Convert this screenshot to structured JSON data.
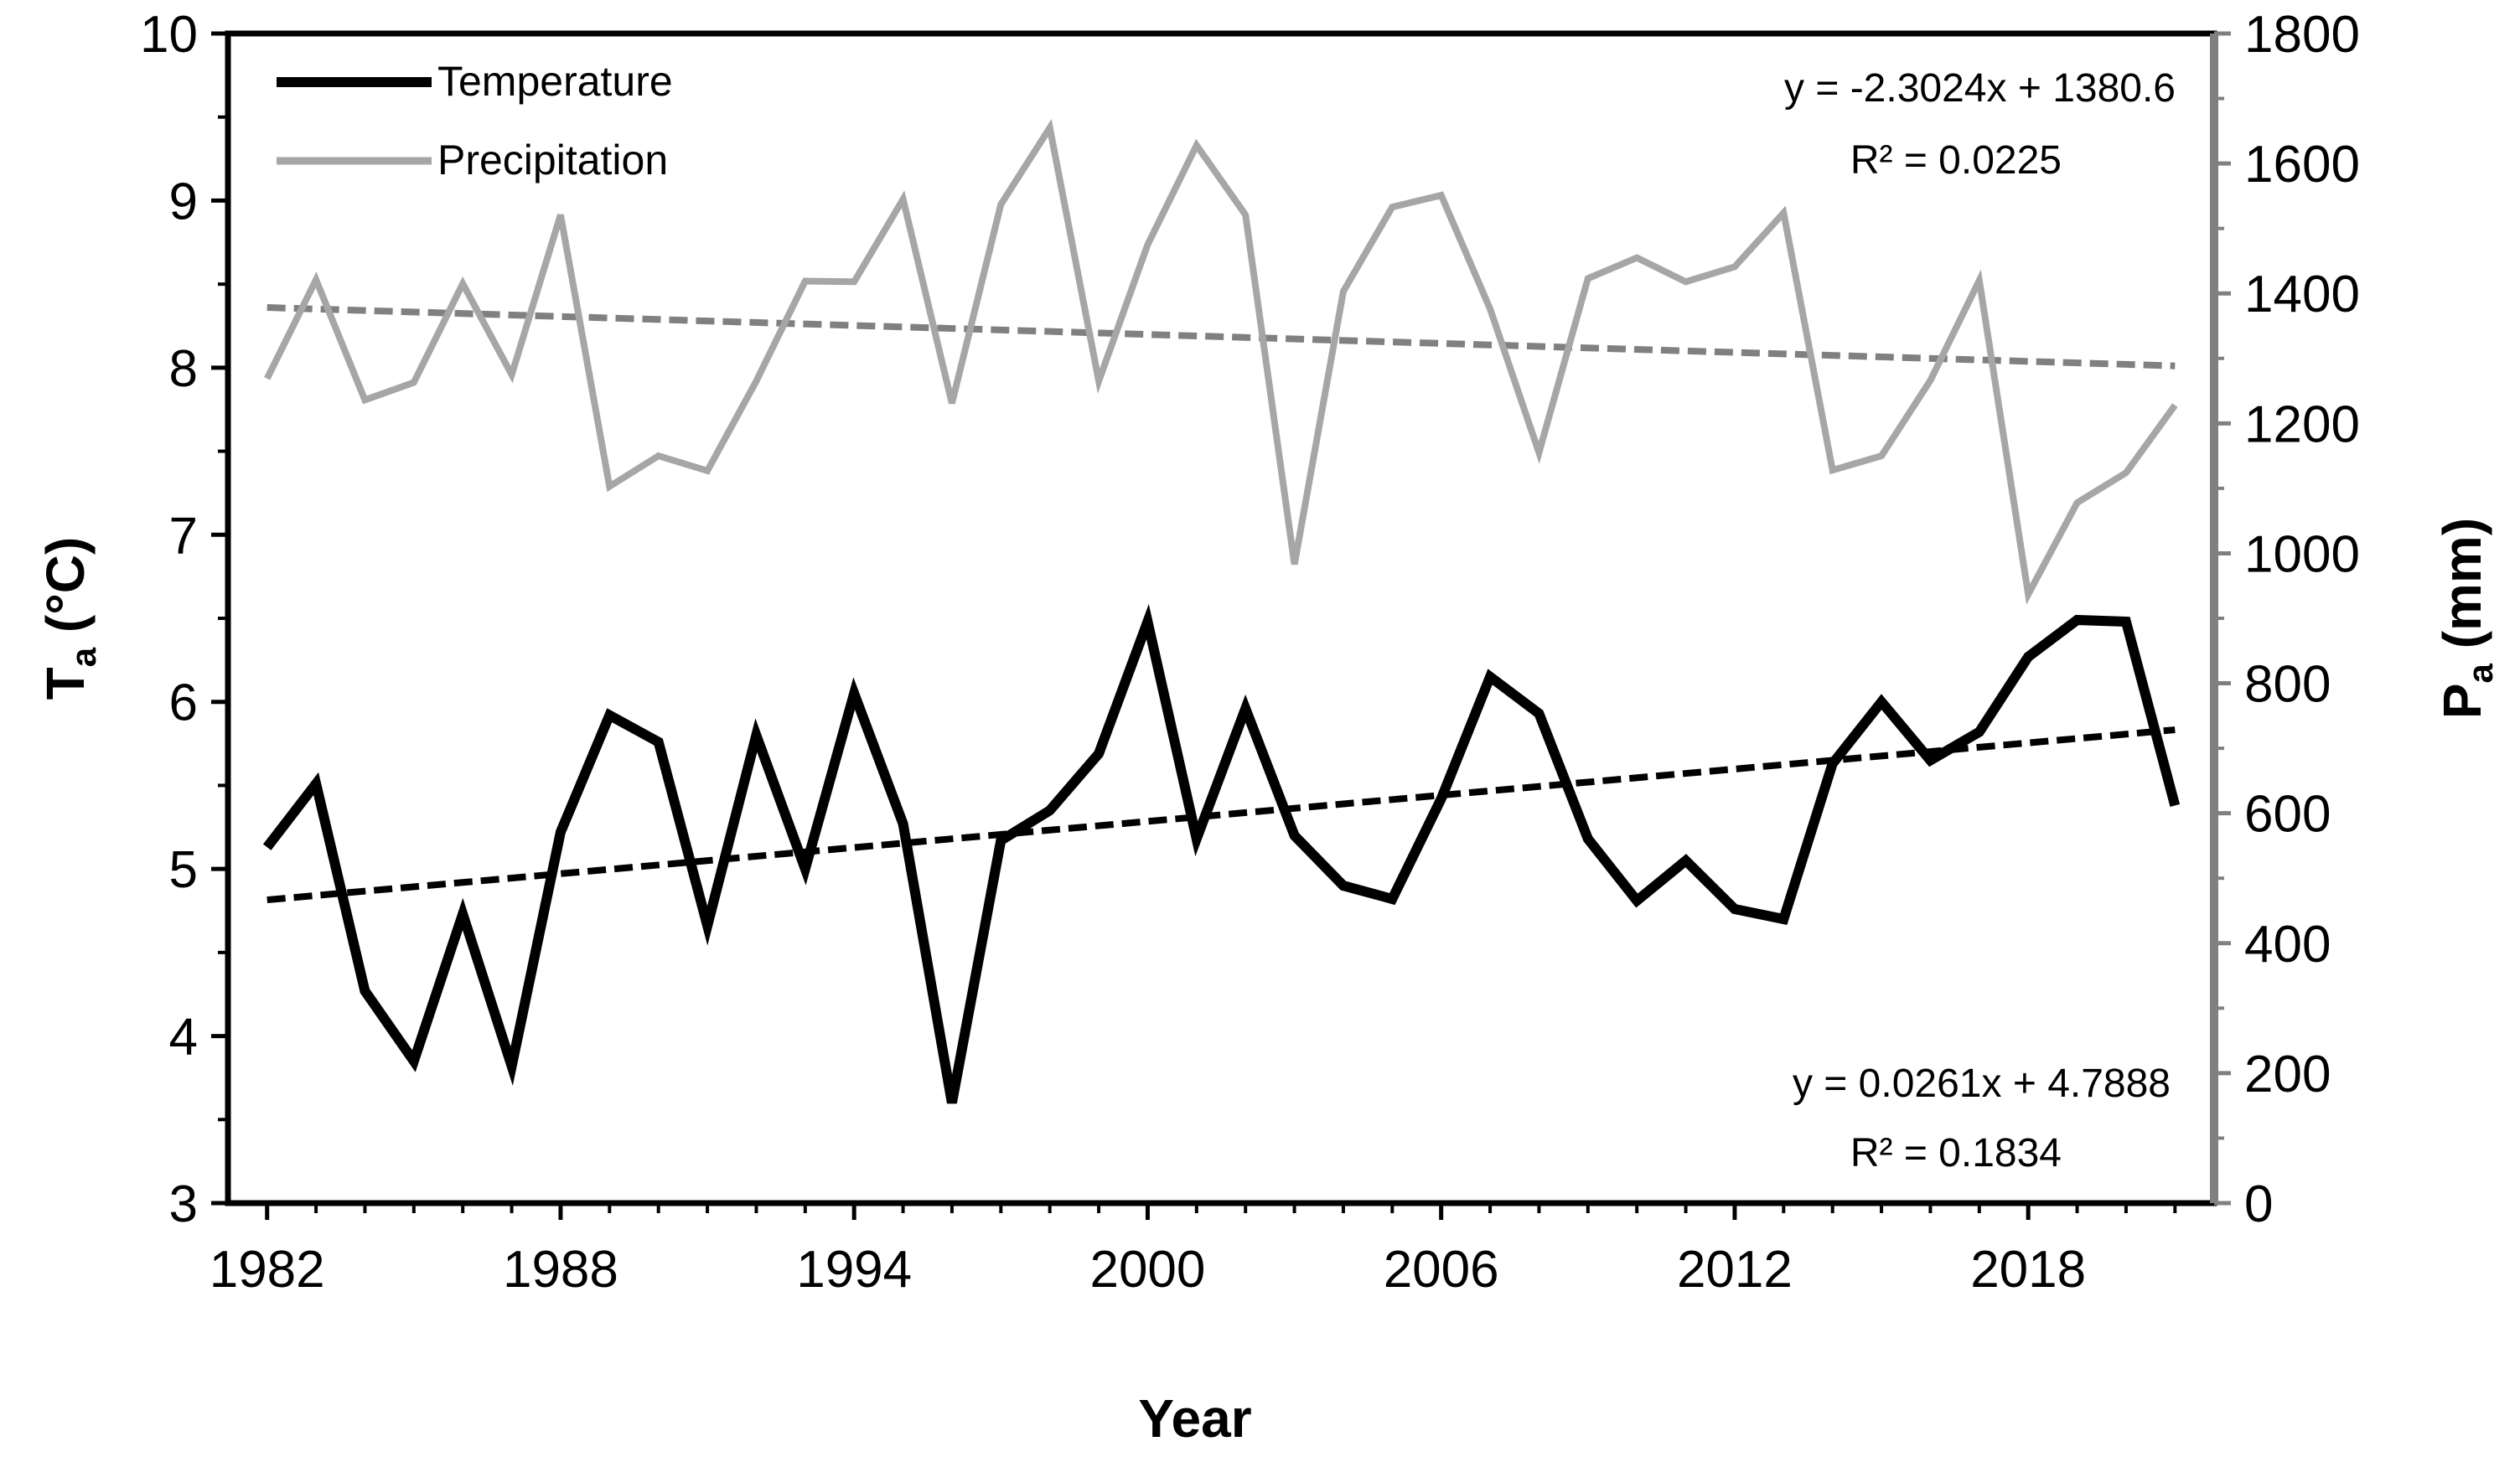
{
  "chart_data": {
    "type": "line",
    "xlabel": "Year",
    "ylabel_left_main": "T",
    "ylabel_left_sub": "a",
    "ylabel_left_unit": " (°C)",
    "ylabel_right_main": "P",
    "ylabel_right_sub": "a",
    "ylabel_right_unit": " (mm)",
    "xlim": [
      1981.2,
      2021.8
    ],
    "xticks": [
      1982,
      1988,
      1994,
      2000,
      2006,
      2012,
      2018
    ],
    "xtick_labels": [
      "1982",
      "1988",
      "1994",
      "2000",
      "2006",
      "2012",
      "2018"
    ],
    "ylim_left": [
      3,
      10
    ],
    "yticks_left": [
      3,
      4,
      5,
      6,
      7,
      8,
      9,
      10
    ],
    "ytick_labels_left": [
      "3",
      "4",
      "5",
      "6",
      "7",
      "8",
      "9",
      "10"
    ],
    "ylim_right": [
      0,
      1800
    ],
    "yticks_right": [
      0,
      200,
      400,
      600,
      800,
      1000,
      1200,
      1400,
      1600,
      1800
    ],
    "ytick_labels_right": [
      "0",
      "200",
      "400",
      "600",
      "800",
      "1000",
      "1200",
      "1400",
      "1600",
      "1800"
    ],
    "x": [
      1982,
      1983,
      1984,
      1985,
      1986,
      1987,
      1988,
      1989,
      1990,
      1991,
      1992,
      1993,
      1994,
      1995,
      1996,
      1997,
      1998,
      1999,
      2000,
      2001,
      2002,
      2003,
      2004,
      2005,
      2006,
      2007,
      2008,
      2009,
      2010,
      2011,
      2012,
      2013,
      2014,
      2015,
      2016,
      2017,
      2018,
      2019,
      2020,
      2021
    ],
    "series": [
      {
        "name": "Temperature",
        "axis": "left",
        "color": "#000000",
        "values": [
          5.13,
          5.51,
          4.27,
          3.85,
          4.73,
          3.82,
          5.22,
          5.92,
          5.76,
          4.66,
          5.8,
          5.0,
          6.05,
          5.27,
          3.6,
          5.17,
          5.35,
          5.69,
          6.48,
          5.18,
          5.96,
          5.2,
          4.9,
          4.82,
          5.42,
          6.15,
          5.93,
          5.18,
          4.81,
          5.05,
          4.76,
          4.7,
          5.63,
          6.0,
          5.65,
          5.82,
          6.27,
          6.49,
          6.48,
          5.38
        ]
      },
      {
        "name": "Precipitation",
        "axis": "right",
        "color": "#a6a6a6",
        "values": [
          1269,
          1421,
          1236,
          1263,
          1415,
          1275,
          1521,
          1103,
          1150,
          1127,
          1265,
          1419,
          1418,
          1545,
          1231,
          1537,
          1655,
          1265,
          1475,
          1628,
          1521,
          983,
          1403,
          1533,
          1551,
          1376,
          1155,
          1423,
          1455,
          1418,
          1441,
          1524,
          1128,
          1150,
          1266,
          1420,
          937,
          1078,
          1124,
          1228
        ]
      }
    ],
    "trendlines": [
      {
        "series": "Temperature",
        "axis": "left",
        "slope": 0.0261,
        "intercept": 4.7888,
        "equation": "y = 0.0261x + 4.7888",
        "r2": "R² = 0.1834",
        "color": "#000000"
      },
      {
        "series": "Precipitation",
        "axis": "right",
        "slope": -2.3024,
        "intercept": 1380.6,
        "equation": "y = -2.3024x + 1380.6",
        "r2": "R² = 0.0225",
        "color": "#808080"
      }
    ],
    "legend": [
      "Temperature",
      "Precipitation"
    ],
    "legend_position": "top-left",
    "grid": false
  }
}
